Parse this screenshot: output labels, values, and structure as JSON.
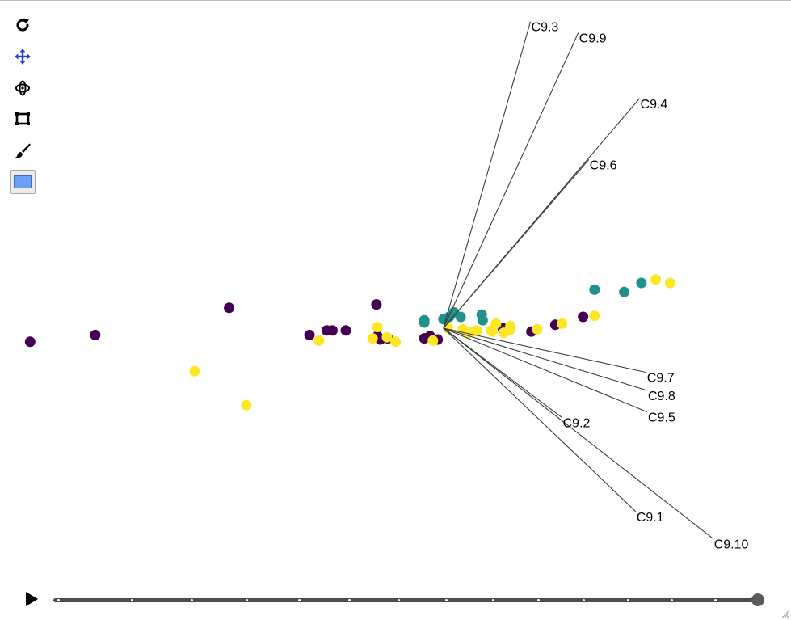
{
  "toolbar": {
    "tools": [
      {
        "name": "reset-view-icon",
        "color": "#000000"
      },
      {
        "name": "pan-icon",
        "color": "#2b3fd6"
      },
      {
        "name": "rotate-icon",
        "color": "#000000"
      },
      {
        "name": "box-zoom-icon",
        "color": "#000000"
      },
      {
        "name": "brush-icon",
        "color": "#000000"
      },
      {
        "name": "selection-color-swatch",
        "color": "#6f9ef5"
      }
    ]
  },
  "player": {
    "play_icon": "play-icon",
    "frames": 15,
    "current_frame": 15
  },
  "chart_data": {
    "type": "scatter",
    "title": "",
    "xlabel": "",
    "ylabel": "",
    "grid": false,
    "legend": "none",
    "xlim": [
      -4.5,
      3.0
    ],
    "ylim": [
      -2.1,
      2.9
    ],
    "origin": [
      0,
      0
    ],
    "group_colors": [
      "#440154",
      "#21918c",
      "#fde725"
    ],
    "points": [
      {
        "x": -4.32,
        "y": -0.12,
        "g": 0
      },
      {
        "x": -3.64,
        "y": -0.06,
        "g": 0
      },
      {
        "x": -2.24,
        "y": 0.18,
        "g": 0
      },
      {
        "x": -1.4,
        "y": -0.06,
        "g": 0
      },
      {
        "x": -1.22,
        "y": -0.02,
        "g": 0
      },
      {
        "x": -1.16,
        "y": -0.02,
        "g": 0
      },
      {
        "x": -1.02,
        "y": -0.02,
        "g": 0
      },
      {
        "x": -0.7,
        "y": 0.21,
        "g": 0
      },
      {
        "x": -0.66,
        "y": -0.1,
        "g": 0
      },
      {
        "x": -0.69,
        "y": -0.07,
        "g": 0
      },
      {
        "x": -0.58,
        "y": -0.09,
        "g": 0
      },
      {
        "x": -0.2,
        "y": -0.09,
        "g": 0
      },
      {
        "x": -0.14,
        "y": -0.07,
        "g": 0
      },
      {
        "x": -0.06,
        "y": -0.1,
        "g": 0
      },
      {
        "x": 0.62,
        "y": 0.0,
        "g": 0
      },
      {
        "x": 0.92,
        "y": -0.03,
        "g": 0
      },
      {
        "x": 1.17,
        "y": 0.03,
        "g": 0
      },
      {
        "x": 1.46,
        "y": 0.1,
        "g": 0
      },
      {
        "x": -0.2,
        "y": 0.05,
        "g": 1
      },
      {
        "x": -0.2,
        "y": 0.07,
        "g": 1
      },
      {
        "x": 0.0,
        "y": 0.08,
        "g": 1
      },
      {
        "x": 0.06,
        "y": 0.1,
        "g": 1
      },
      {
        "x": 0.11,
        "y": 0.14,
        "g": 1
      },
      {
        "x": 0.18,
        "y": 0.1,
        "g": 1
      },
      {
        "x": 0.4,
        "y": 0.12,
        "g": 1
      },
      {
        "x": 0.41,
        "y": 0.07,
        "g": 1
      },
      {
        "x": 1.58,
        "y": 0.34,
        "g": 1
      },
      {
        "x": 1.89,
        "y": 0.32,
        "g": 1
      },
      {
        "x": 2.07,
        "y": 0.4,
        "g": 1
      },
      {
        "x": -2.6,
        "y": -0.38,
        "g": 2
      },
      {
        "x": -2.06,
        "y": -0.68,
        "g": 2
      },
      {
        "x": -1.3,
        "y": -0.11,
        "g": 2
      },
      {
        "x": -0.74,
        "y": -0.09,
        "g": 2
      },
      {
        "x": -0.69,
        "y": 0.01,
        "g": 2
      },
      {
        "x": -0.59,
        "y": -0.08,
        "g": 2
      },
      {
        "x": -0.5,
        "y": -0.12,
        "g": 2
      },
      {
        "x": -0.11,
        "y": -0.11,
        "g": 2
      },
      {
        "x": 0.05,
        "y": 0.0,
        "g": 2
      },
      {
        "x": 0.2,
        "y": -0.01,
        "g": 2
      },
      {
        "x": 0.26,
        "y": -0.04,
        "g": 2
      },
      {
        "x": 0.31,
        "y": -0.03,
        "g": 2
      },
      {
        "x": 0.35,
        "y": -0.02,
        "g": 2
      },
      {
        "x": 0.5,
        "y": -0.02,
        "g": 2
      },
      {
        "x": 0.51,
        "y": -0.03,
        "g": 2
      },
      {
        "x": 0.55,
        "y": 0.04,
        "g": 2
      },
      {
        "x": 0.63,
        "y": -0.04,
        "g": 2
      },
      {
        "x": 0.69,
        "y": -0.02,
        "g": 2
      },
      {
        "x": 0.7,
        "y": 0.02,
        "g": 2
      },
      {
        "x": 0.98,
        "y": -0.01,
        "g": 2
      },
      {
        "x": 1.24,
        "y": 0.04,
        "g": 2
      },
      {
        "x": 1.58,
        "y": 0.11,
        "g": 2
      },
      {
        "x": 2.22,
        "y": 0.43,
        "g": 2
      },
      {
        "x": 2.37,
        "y": 0.4,
        "g": 2
      }
    ],
    "loadings": [
      {
        "label": "C9.3",
        "x": 0.91,
        "y": 2.71
      },
      {
        "label": "C9.9",
        "x": 1.41,
        "y": 2.61
      },
      {
        "label": "C9.4",
        "x": 2.05,
        "y": 2.03
      },
      {
        "label": "C9.6",
        "x": 1.52,
        "y": 1.49
      },
      {
        "label": "C9.7",
        "x": 2.12,
        "y": -0.39
      },
      {
        "label": "C9.8",
        "x": 2.13,
        "y": -0.55
      },
      {
        "label": "C9.5",
        "x": 2.13,
        "y": -0.74
      },
      {
        "label": "C9.2",
        "x": 1.24,
        "y": -0.79
      },
      {
        "label": "C9.1",
        "x": 2.01,
        "y": -1.62
      },
      {
        "label": "C9.10",
        "x": 2.82,
        "y": -1.86
      }
    ]
  }
}
